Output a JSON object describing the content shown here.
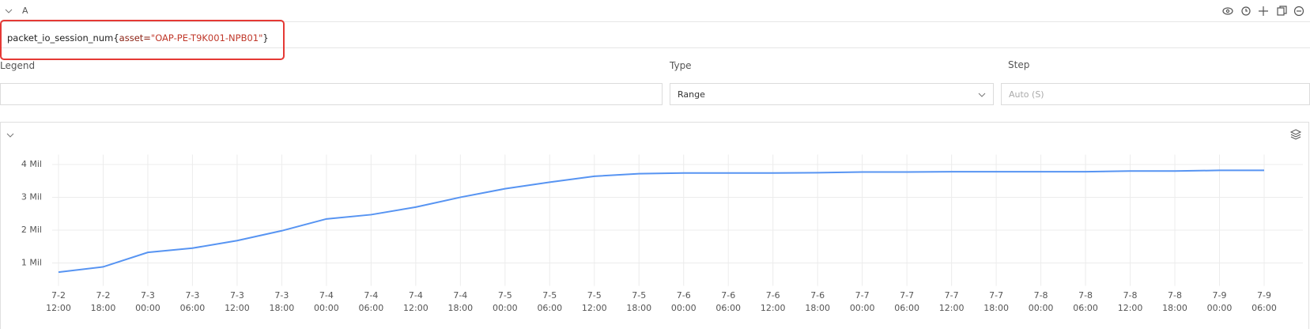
{
  "query_row": {
    "name": "A",
    "query": [
      "packet_io_session_num",
      "{",
      "asset=",
      "\"OAP-PE-T9K001-NPB01\"",
      "}"
    ]
  },
  "options": {
    "legend_label": "Legend",
    "type_label": "Type",
    "type_value": "Range",
    "step_label": "Step",
    "step_placeholder": "Auto (S)"
  },
  "chart_data": {
    "type": "line",
    "x": [
      [
        "7-2",
        "12:00"
      ],
      [
        "7-2",
        "18:00"
      ],
      [
        "7-3",
        "00:00"
      ],
      [
        "7-3",
        "06:00"
      ],
      [
        "7-3",
        "12:00"
      ],
      [
        "7-3",
        "18:00"
      ],
      [
        "7-4",
        "00:00"
      ],
      [
        "7-4",
        "06:00"
      ],
      [
        "7-4",
        "12:00"
      ],
      [
        "7-4",
        "18:00"
      ],
      [
        "7-5",
        "00:00"
      ],
      [
        "7-5",
        "06:00"
      ],
      [
        "7-5",
        "12:00"
      ],
      [
        "7-5",
        "18:00"
      ],
      [
        "7-6",
        "00:00"
      ],
      [
        "7-6",
        "06:00"
      ],
      [
        "7-6",
        "12:00"
      ],
      [
        "7-6",
        "18:00"
      ],
      [
        "7-7",
        "00:00"
      ],
      [
        "7-7",
        "06:00"
      ],
      [
        "7-7",
        "12:00"
      ],
      [
        "7-7",
        "18:00"
      ],
      [
        "7-8",
        "00:00"
      ],
      [
        "7-8",
        "06:00"
      ],
      [
        "7-8",
        "12:00"
      ],
      [
        "7-8",
        "18:00"
      ],
      [
        "7-9",
        "00:00"
      ],
      [
        "7-9",
        "06:00"
      ]
    ],
    "series": [
      {
        "color": "#5794f2",
        "values": [
          0.72,
          0.88,
          1.32,
          1.45,
          1.68,
          1.98,
          2.34,
          2.47,
          2.7,
          3.0,
          3.26,
          3.46,
          3.64,
          3.72,
          3.74,
          3.74,
          3.74,
          3.75,
          3.77,
          3.77,
          3.78,
          3.78,
          3.78,
          3.78,
          3.8,
          3.8,
          3.82,
          3.82
        ]
      }
    ],
    "ylim": [
      0.3,
      4.3
    ],
    "yticks": [
      {
        "value": 1,
        "label": "1 Mil"
      },
      {
        "value": 2,
        "label": "2 Mil"
      },
      {
        "value": 3,
        "label": "3 Mil"
      },
      {
        "value": 4,
        "label": "4 Mil"
      }
    ],
    "grid": true
  }
}
